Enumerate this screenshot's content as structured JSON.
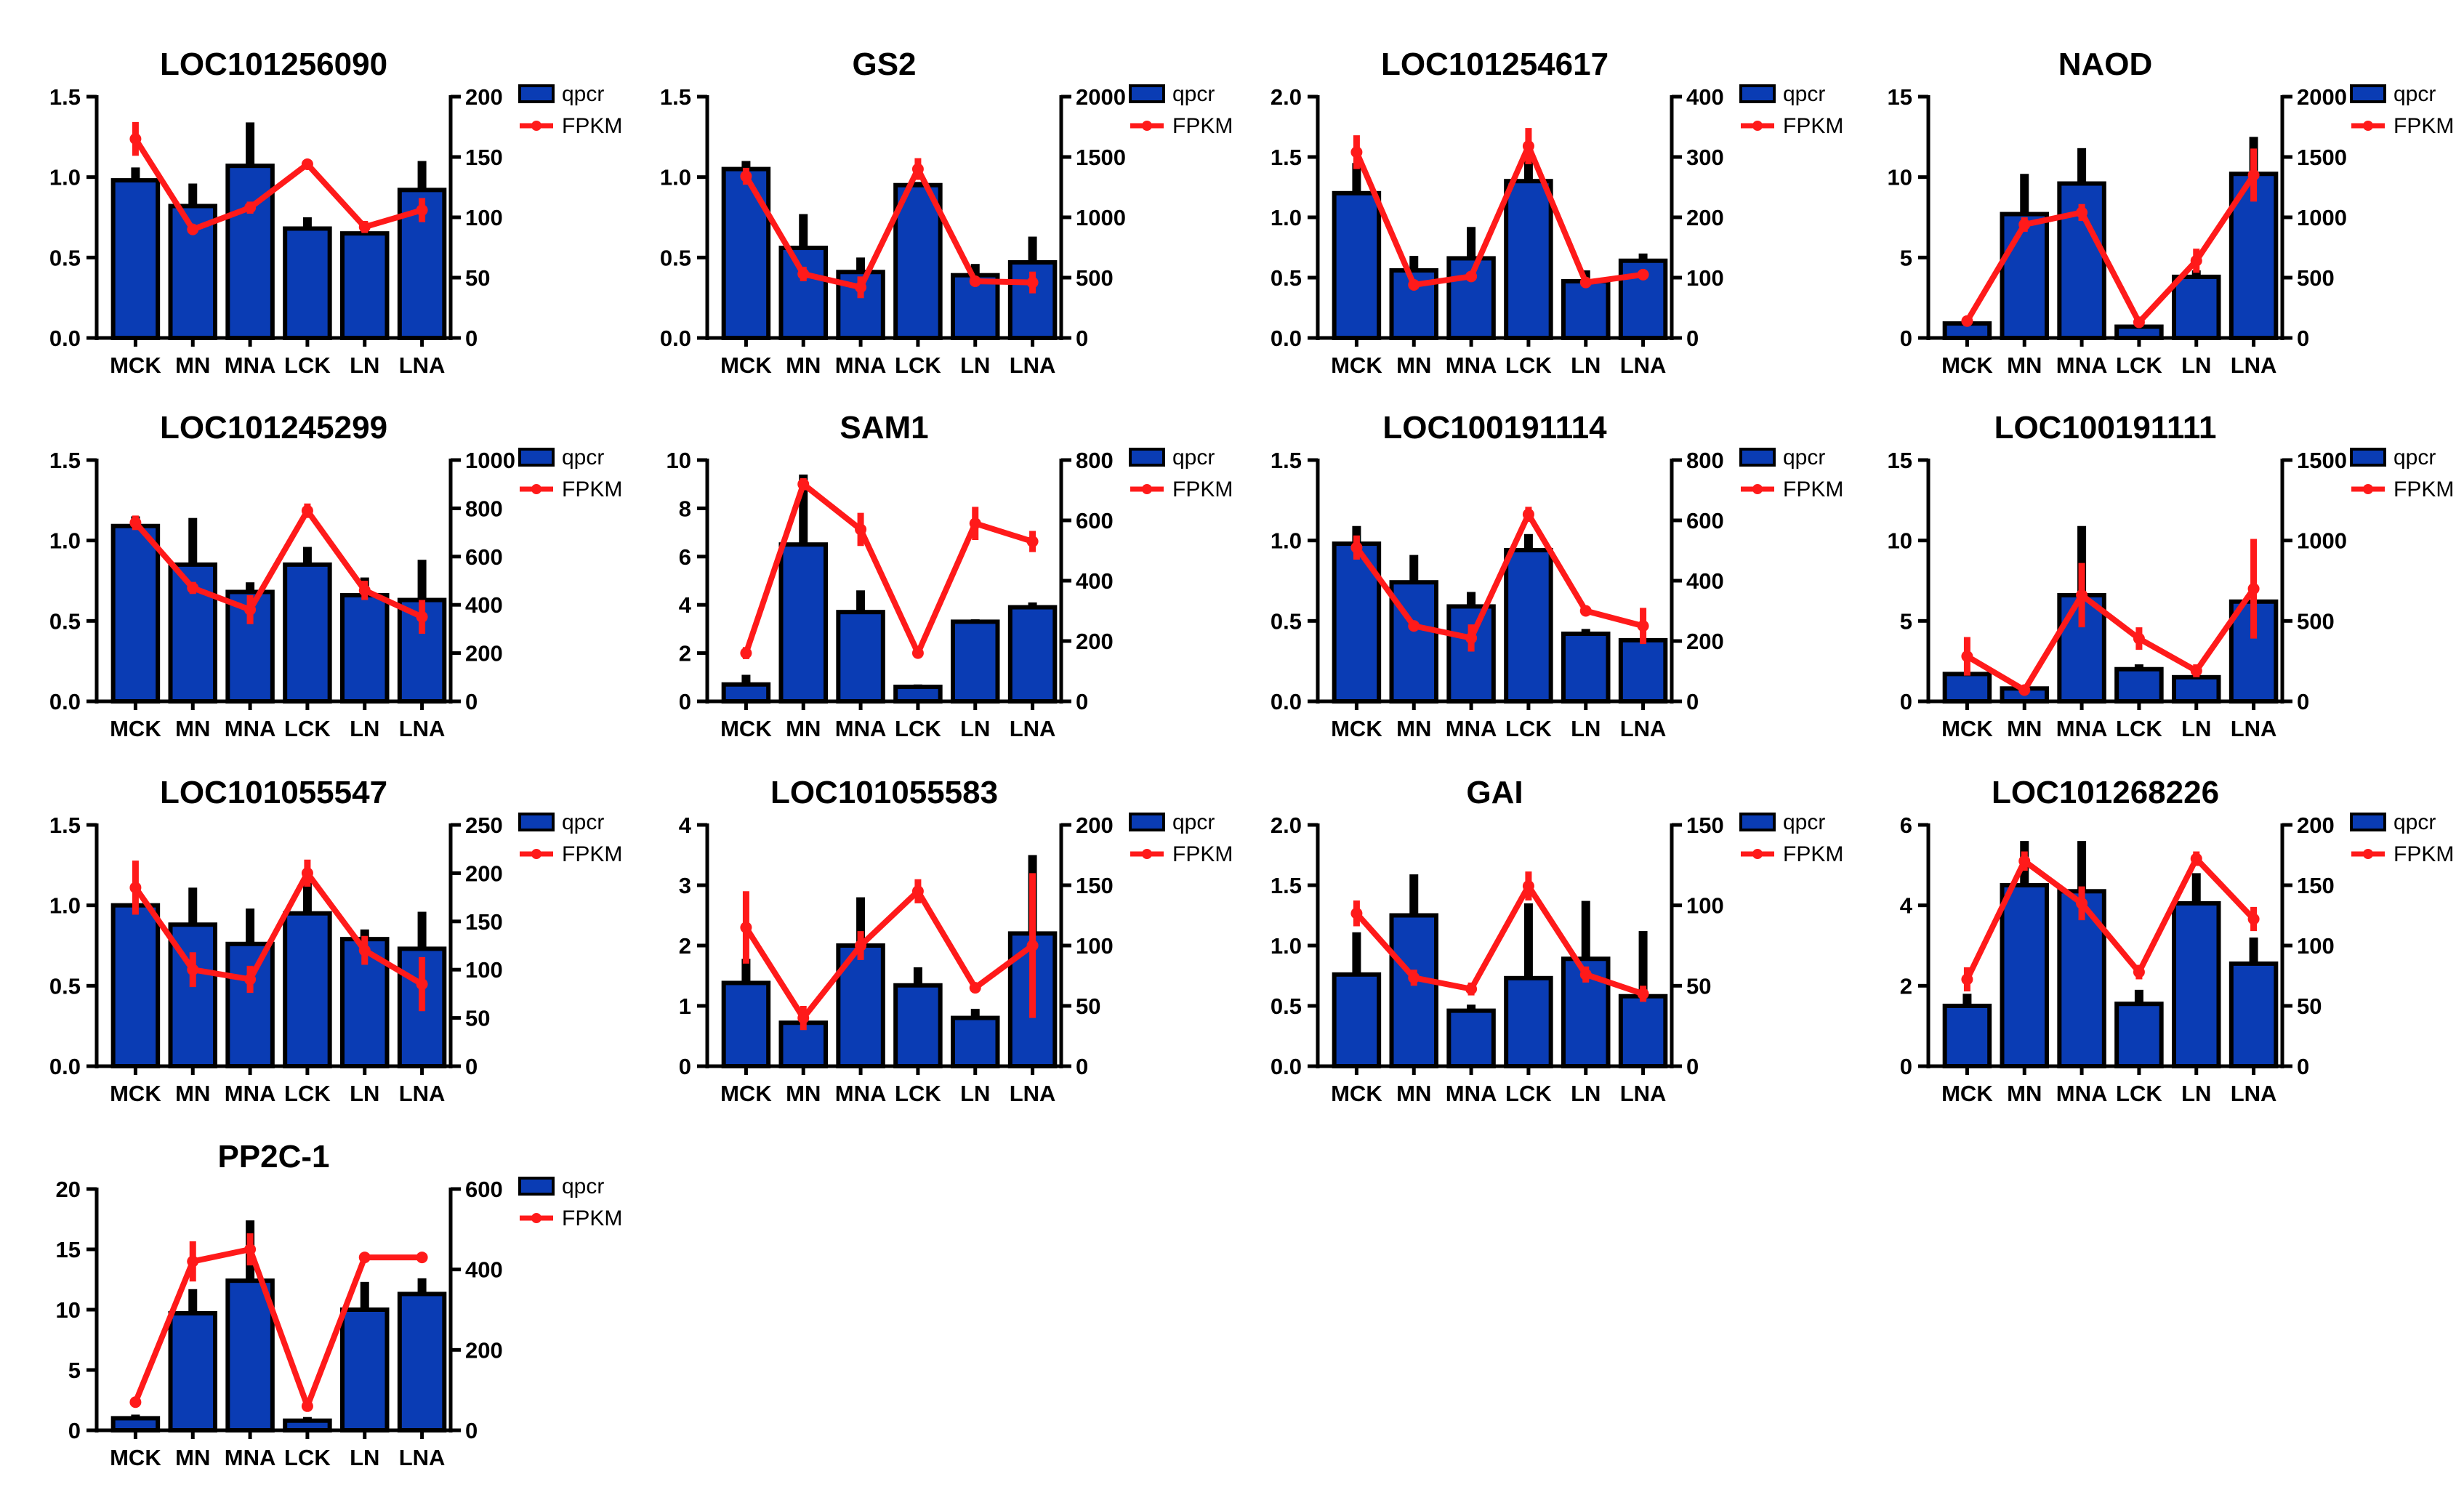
{
  "figure": {
    "legend": {
      "bar_label": "qpcr",
      "line_label": "FPKM"
    },
    "colors": {
      "bar": "#0a3cb4",
      "line": "#ff1a1a",
      "axis": "#000000",
      "error": "#000000"
    }
  },
  "chart_data": [
    {
      "type": "bar+line",
      "title": "LOC101256090",
      "categories": [
        "MCK",
        "MN",
        "MNA",
        "LCK",
        "LN",
        "LNA"
      ],
      "left_axis": {
        "ylim": [
          0,
          1.5
        ],
        "ticks": [
          "0.0",
          "0.5",
          "1.0",
          "1.5"
        ]
      },
      "right_axis": {
        "ylim": [
          0,
          200
        ],
        "ticks": [
          "0",
          "50",
          "100",
          "150",
          "200"
        ]
      },
      "series": [
        {
          "name": "qpcr",
          "type": "bar",
          "axis": "left",
          "values": [
            0.98,
            0.82,
            1.07,
            0.68,
            0.65,
            0.92
          ],
          "errors": [
            0.08,
            0.14,
            0.27,
            0.07,
            0.02,
            0.18
          ]
        },
        {
          "name": "FPKM",
          "type": "line",
          "axis": "right",
          "values": [
            165,
            90,
            108,
            144,
            92,
            106
          ],
          "errors": [
            14,
            3,
            5,
            4,
            5,
            10
          ]
        }
      ]
    },
    {
      "type": "bar+line",
      "title": "GS2",
      "categories": [
        "MCK",
        "MN",
        "MNA",
        "LCK",
        "LN",
        "LNA"
      ],
      "left_axis": {
        "ylim": [
          0,
          1.5
        ],
        "ticks": [
          "0.0",
          "0.5",
          "1.0",
          "1.5"
        ]
      },
      "right_axis": {
        "ylim": [
          0,
          2000
        ],
        "ticks": [
          "0",
          "500",
          "1000",
          "1500",
          "2000"
        ]
      },
      "series": [
        {
          "name": "qpcr",
          "type": "bar",
          "axis": "left",
          "values": [
            1.05,
            0.56,
            0.41,
            0.95,
            0.39,
            0.47
          ],
          "errors": [
            0.05,
            0.21,
            0.09,
            0.02,
            0.07,
            0.16
          ]
        },
        {
          "name": "FPKM",
          "type": "line",
          "axis": "right",
          "values": [
            1340,
            530,
            420,
            1400,
            470,
            460
          ],
          "errors": [
            70,
            60,
            90,
            90,
            40,
            90
          ]
        }
      ]
    },
    {
      "type": "bar+line",
      "title": "LOC101254617",
      "categories": [
        "MCK",
        "MN",
        "MNA",
        "LCK",
        "LN",
        "LNA"
      ],
      "left_axis": {
        "ylim": [
          0,
          2.0
        ],
        "ticks": [
          "0.0",
          "0.5",
          "1.0",
          "1.5",
          "2.0"
        ]
      },
      "right_axis": {
        "ylim": [
          0,
          400
        ],
        "ticks": [
          "0",
          "100",
          "200",
          "300",
          "400"
        ]
      },
      "series": [
        {
          "name": "qpcr",
          "type": "bar",
          "axis": "left",
          "values": [
            1.2,
            0.56,
            0.66,
            1.3,
            0.47,
            0.64
          ],
          "errors": [
            0.25,
            0.12,
            0.26,
            0.25,
            0.09,
            0.06
          ]
        },
        {
          "name": "FPKM",
          "type": "line",
          "axis": "right",
          "values": [
            308,
            88,
            102,
            318,
            92,
            105
          ],
          "errors": [
            28,
            6,
            6,
            30,
            5,
            5
          ]
        }
      ]
    },
    {
      "type": "bar+line",
      "title": "NAOD",
      "categories": [
        "MCK",
        "MN",
        "MNA",
        "LCK",
        "LN",
        "LNA"
      ],
      "left_axis": {
        "ylim": [
          0,
          15
        ],
        "ticks": [
          "0",
          "5",
          "10",
          "15"
        ]
      },
      "right_axis": {
        "ylim": [
          0,
          2000
        ],
        "ticks": [
          "0",
          "500",
          "1000",
          "1500",
          "2000"
        ]
      },
      "series": [
        {
          "name": "qpcr",
          "type": "bar",
          "axis": "left",
          "values": [
            0.9,
            7.7,
            9.6,
            0.7,
            3.8,
            10.2
          ],
          "errors": [
            0.2,
            2.5,
            2.2,
            0.1,
            0.4,
            2.3
          ]
        },
        {
          "name": "FPKM",
          "type": "line",
          "axis": "right",
          "values": [
            140,
            940,
            1040,
            130,
            640,
            1350
          ],
          "errors": [
            40,
            60,
            70,
            30,
            100,
            220
          ]
        }
      ]
    },
    {
      "type": "bar+line",
      "title": "LOC101245299",
      "categories": [
        "MCK",
        "MN",
        "MNA",
        "LCK",
        "LN",
        "LNA"
      ],
      "left_axis": {
        "ylim": [
          0,
          1.5
        ],
        "ticks": [
          "0.0",
          "0.5",
          "1.0",
          "1.5"
        ]
      },
      "right_axis": {
        "ylim": [
          0,
          1000
        ],
        "ticks": [
          "0",
          "200",
          "400",
          "600",
          "800",
          "1000"
        ]
      },
      "series": [
        {
          "name": "qpcr",
          "type": "bar",
          "axis": "left",
          "values": [
            1.09,
            0.85,
            0.68,
            0.85,
            0.66,
            0.63
          ],
          "errors": [
            0.06,
            0.29,
            0.06,
            0.11,
            0.11,
            0.25
          ]
        },
        {
          "name": "FPKM",
          "type": "line",
          "axis": "right",
          "values": [
            740,
            470,
            380,
            790,
            460,
            350
          ],
          "errors": [
            30,
            25,
            60,
            30,
            40,
            70
          ]
        }
      ]
    },
    {
      "type": "bar+line",
      "title": "SAM1",
      "categories": [
        "MCK",
        "MN",
        "MNA",
        "LCK",
        "LN",
        "LNA"
      ],
      "left_axis": {
        "ylim": [
          0,
          10
        ],
        "ticks": [
          "0",
          "2",
          "4",
          "6",
          "8",
          "10"
        ]
      },
      "right_axis": {
        "ylim": [
          0,
          800
        ],
        "ticks": [
          "0",
          "200",
          "400",
          "600",
          "800"
        ]
      },
      "series": [
        {
          "name": "qpcr",
          "type": "bar",
          "axis": "left",
          "values": [
            0.7,
            6.5,
            3.7,
            0.6,
            3.3,
            3.9
          ],
          "errors": [
            0.4,
            2.9,
            0.9,
            0.1,
            0.1,
            0.2
          ]
        },
        {
          "name": "FPKM",
          "type": "line",
          "axis": "right",
          "values": [
            160,
            720,
            570,
            160,
            590,
            530
          ],
          "errors": [
            20,
            20,
            55,
            15,
            55,
            35
          ]
        }
      ]
    },
    {
      "type": "bar+line",
      "title": "LOC100191114",
      "categories": [
        "MCK",
        "MN",
        "MNA",
        "LCK",
        "LN",
        "LNA"
      ],
      "left_axis": {
        "ylim": [
          0,
          1.5
        ],
        "ticks": [
          "0.0",
          "0.5",
          "1.0",
          "1.5"
        ]
      },
      "right_axis": {
        "ylim": [
          0,
          800
        ],
        "ticks": [
          "0",
          "200",
          "400",
          "600",
          "800"
        ]
      },
      "series": [
        {
          "name": "qpcr",
          "type": "bar",
          "axis": "left",
          "values": [
            0.98,
            0.74,
            0.59,
            0.94,
            0.42,
            0.38
          ],
          "errors": [
            0.11,
            0.17,
            0.09,
            0.1,
            0.03,
            0.0
          ]
        },
        {
          "name": "FPKM",
          "type": "line",
          "axis": "right",
          "values": [
            510,
            250,
            210,
            620,
            300,
            250
          ],
          "errors": [
            40,
            10,
            45,
            25,
            10,
            60
          ]
        }
      ]
    },
    {
      "type": "bar+line",
      "title": "LOC100191111",
      "categories": [
        "MCK",
        "MN",
        "MNA",
        "LCK",
        "LN",
        "LNA"
      ],
      "left_axis": {
        "ylim": [
          0,
          15
        ],
        "ticks": [
          "0",
          "5",
          "10",
          "15"
        ]
      },
      "right_axis": {
        "ylim": [
          0,
          1500
        ],
        "ticks": [
          "0",
          "500",
          "1000",
          "1500"
        ]
      },
      "series": [
        {
          "name": "qpcr",
          "type": "bar",
          "axis": "left",
          "values": [
            1.7,
            0.8,
            6.6,
            2.0,
            1.5,
            6.2
          ],
          "errors": [
            0.1,
            0.1,
            4.3,
            0.3,
            0.1,
            0.1
          ]
        },
        {
          "name": "FPKM",
          "type": "line",
          "axis": "right",
          "values": [
            280,
            70,
            660,
            390,
            190,
            700
          ],
          "errors": [
            120,
            15,
            200,
            70,
            40,
            310
          ]
        }
      ]
    },
    {
      "type": "bar+line",
      "title": "LOC101055547",
      "categories": [
        "MCK",
        "MN",
        "MNA",
        "LCK",
        "LN",
        "LNA"
      ],
      "left_axis": {
        "ylim": [
          0,
          1.5
        ],
        "ticks": [
          "0.0",
          "0.5",
          "1.0",
          "1.5"
        ]
      },
      "right_axis": {
        "ylim": [
          0,
          250
        ],
        "ticks": [
          "0",
          "50",
          "100",
          "150",
          "200",
          "250"
        ]
      },
      "series": [
        {
          "name": "qpcr",
          "type": "bar",
          "axis": "left",
          "values": [
            1.0,
            0.88,
            0.76,
            0.95,
            0.79,
            0.73
          ],
          "errors": [
            0.0,
            0.23,
            0.22,
            0.19,
            0.06,
            0.23
          ]
        },
        {
          "name": "FPKM",
          "type": "line",
          "axis": "right",
          "values": [
            185,
            100,
            90,
            200,
            120,
            85
          ],
          "errors": [
            28,
            18,
            14,
            14,
            15,
            28
          ]
        }
      ]
    },
    {
      "type": "bar+line",
      "title": "LOC101055583",
      "categories": [
        "MCK",
        "MN",
        "MNA",
        "LCK",
        "LN",
        "LNA"
      ],
      "left_axis": {
        "ylim": [
          0,
          4
        ],
        "ticks": [
          "0",
          "1",
          "2",
          "3",
          "4"
        ]
      },
      "right_axis": {
        "ylim": [
          0,
          200
        ],
        "ticks": [
          "0",
          "50",
          "100",
          "150",
          "200"
        ]
      },
      "series": [
        {
          "name": "qpcr",
          "type": "bar",
          "axis": "left",
          "values": [
            1.38,
            0.72,
            2.0,
            1.34,
            0.8,
            2.2
          ],
          "errors": [
            0.4,
            0.1,
            0.8,
            0.3,
            0.15,
            1.3
          ]
        },
        {
          "name": "FPKM",
          "type": "line",
          "axis": "right",
          "values": [
            115,
            40,
            100,
            145,
            65,
            100
          ],
          "errors": [
            30,
            10,
            12,
            10,
            4,
            60
          ]
        }
      ]
    },
    {
      "type": "bar+line",
      "title": "GAI",
      "categories": [
        "MCK",
        "MN",
        "MNA",
        "LCK",
        "LN",
        "LNA"
      ],
      "left_axis": {
        "ylim": [
          0,
          2.0
        ],
        "ticks": [
          "0.0",
          "0.5",
          "1.0",
          "1.5",
          "2.0"
        ]
      },
      "right_axis": {
        "ylim": [
          0,
          150
        ],
        "ticks": [
          "0",
          "50",
          "100",
          "150"
        ]
      },
      "series": [
        {
          "name": "qpcr",
          "type": "bar",
          "axis": "left",
          "values": [
            0.76,
            1.25,
            0.46,
            0.73,
            0.89,
            0.58
          ],
          "errors": [
            0.35,
            0.34,
            0.05,
            0.62,
            0.48,
            0.54
          ]
        },
        {
          "name": "FPKM",
          "type": "line",
          "axis": "right",
          "values": [
            95,
            55,
            48,
            112,
            57,
            45
          ],
          "errors": [
            8,
            5,
            4,
            9,
            5,
            5
          ]
        }
      ]
    },
    {
      "type": "bar+line",
      "title": "LOC101268226",
      "categories": [
        "MCK",
        "MN",
        "MNA",
        "LCK",
        "LN",
        "LNA"
      ],
      "left_axis": {
        "ylim": [
          0,
          6
        ],
        "ticks": [
          "0",
          "2",
          "4",
          "6"
        ]
      },
      "right_axis": {
        "ylim": [
          0,
          200
        ],
        "ticks": [
          "0",
          "50",
          "100",
          "150",
          "200"
        ]
      },
      "series": [
        {
          "name": "qpcr",
          "type": "bar",
          "axis": "left",
          "values": [
            1.5,
            4.5,
            4.35,
            1.55,
            4.05,
            2.55
          ],
          "errors": [
            0.3,
            1.1,
            1.25,
            0.35,
            0.75,
            0.65
          ]
        },
        {
          "name": "FPKM",
          "type": "line",
          "axis": "right",
          "values": [
            72,
            170,
            135,
            78,
            172,
            122
          ],
          "errors": [
            10,
            8,
            14,
            6,
            6,
            10
          ]
        }
      ]
    },
    {
      "type": "bar+line",
      "title": "PP2C-1",
      "categories": [
        "MCK",
        "MN",
        "MNA",
        "LCK",
        "LN",
        "LNA"
      ],
      "left_axis": {
        "ylim": [
          0,
          20
        ],
        "ticks": [
          "0",
          "5",
          "10",
          "15",
          "20"
        ]
      },
      "right_axis": {
        "ylim": [
          0,
          600
        ],
        "ticks": [
          "0",
          "200",
          "400",
          "600"
        ]
      },
      "series": [
        {
          "name": "qpcr",
          "type": "bar",
          "axis": "left",
          "values": [
            1.0,
            9.7,
            12.4,
            0.8,
            10.0,
            11.3
          ],
          "errors": [
            0.3,
            2.0,
            5.0,
            0.3,
            2.3,
            1.3
          ]
        },
        {
          "name": "FPKM",
          "type": "line",
          "axis": "right",
          "values": [
            70,
            420,
            450,
            60,
            430,
            430
          ],
          "errors": [
            10,
            50,
            40,
            10,
            10,
            10
          ]
        }
      ]
    }
  ]
}
